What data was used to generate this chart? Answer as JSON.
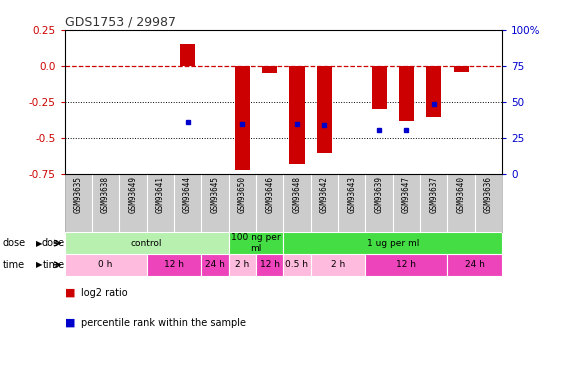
{
  "title": "GDS1753 / 29987",
  "samples": [
    "GSM93635",
    "GSM93638",
    "GSM93649",
    "GSM93641",
    "GSM93644",
    "GSM93645",
    "GSM93650",
    "GSM93646",
    "GSM93648",
    "GSM93642",
    "GSM93643",
    "GSM93639",
    "GSM93647",
    "GSM93637",
    "GSM93640",
    "GSM93636"
  ],
  "log2_ratio": [
    0.0,
    0.0,
    0.0,
    0.0,
    0.155,
    0.0,
    -0.72,
    -0.05,
    -0.68,
    -0.6,
    0.0,
    -0.3,
    -0.38,
    -0.35,
    -0.04,
    0.0
  ],
  "percentile_raw": [
    null,
    null,
    null,
    null,
    36,
    null,
    35,
    null,
    35,
    34,
    null,
    31,
    31,
    49,
    null,
    null
  ],
  "ylim": [
    -0.75,
    0.25
  ],
  "yticks_left": [
    0.25,
    0.0,
    -0.25,
    -0.5,
    -0.75
  ],
  "yticks_right": [
    "100%",
    "75",
    "50",
    "25",
    "0"
  ],
  "yticks_right_vals": [
    0.25,
    0.0,
    -0.25,
    -0.5,
    -0.75
  ],
  "dose_groups": [
    {
      "label": "control",
      "start": 0,
      "end": 6,
      "color": "#b8f0b0"
    },
    {
      "label": "100 ng per\nml",
      "start": 6,
      "end": 8,
      "color": "#44dd44"
    },
    {
      "label": "1 ug per ml",
      "start": 8,
      "end": 16,
      "color": "#44dd44"
    }
  ],
  "time_groups": [
    {
      "label": "0 h",
      "start": 0,
      "end": 3,
      "color": "#ffbbdd"
    },
    {
      "label": "12 h",
      "start": 3,
      "end": 5,
      "color": "#ee44bb"
    },
    {
      "label": "24 h",
      "start": 5,
      "end": 6,
      "color": "#ee44bb"
    },
    {
      "label": "2 h",
      "start": 6,
      "end": 7,
      "color": "#ffbbdd"
    },
    {
      "label": "12 h",
      "start": 7,
      "end": 8,
      "color": "#ee44bb"
    },
    {
      "label": "0.5 h",
      "start": 8,
      "end": 9,
      "color": "#ffbbdd"
    },
    {
      "label": "2 h",
      "start": 9,
      "end": 11,
      "color": "#ffbbdd"
    },
    {
      "label": "12 h",
      "start": 11,
      "end": 14,
      "color": "#ee44bb"
    },
    {
      "label": "24 h",
      "start": 14,
      "end": 16,
      "color": "#ee44bb"
    }
  ],
  "bar_color": "#cc0000",
  "dot_color": "#0000cc",
  "ref_line_color": "#cc0000",
  "grid_color": "#000000",
  "title_color": "#333333",
  "left_axis_color": "#cc0000",
  "right_axis_color": "#0000cc",
  "background_color": "#ffffff",
  "label_bg_color": "#cccccc"
}
